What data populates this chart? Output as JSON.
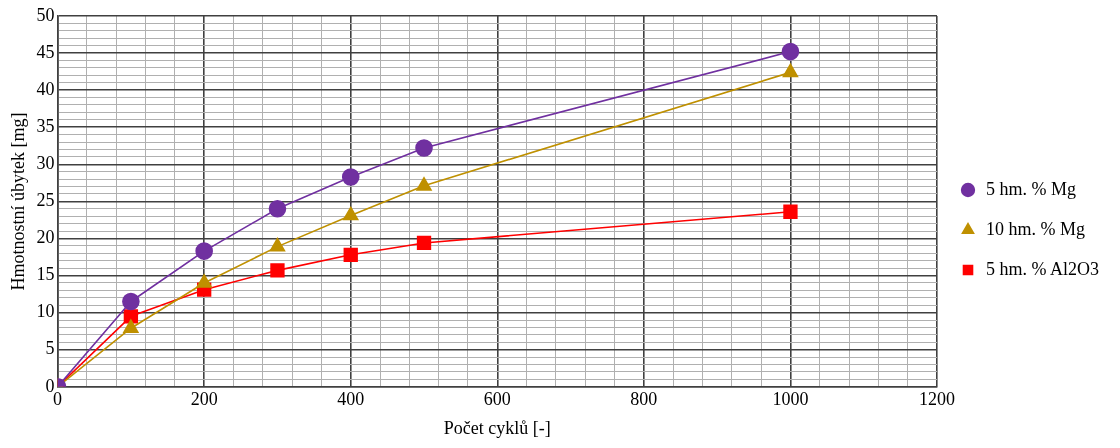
{
  "chart_data": {
    "type": "line",
    "xlabel": "Počet cyklů [-]",
    "ylabel": "Hmotnostní úbytek [mg]",
    "x": [
      0,
      100,
      200,
      300,
      400,
      500,
      1000
    ],
    "series": [
      {
        "name": "5 hm. % Mg",
        "color": "#7030a0",
        "marker": "circle",
        "values": [
          0,
          11.5,
          18.3,
          24,
          28.3,
          32.2,
          45.2
        ]
      },
      {
        "name": "10 hm. % Mg",
        "color": "#bf9000",
        "marker": "triangle",
        "values": [
          0,
          7.9,
          14,
          18.9,
          23.1,
          27.1,
          42.4
        ]
      },
      {
        "name": "5 hm. % Al2O3",
        "color": "#ff0000",
        "marker": "square",
        "values": [
          0,
          9.5,
          13.1,
          15.7,
          17.8,
          19.4,
          23.6
        ]
      }
    ],
    "xlim": [
      0,
      1200
    ],
    "xticks": [
      0,
      {
        "value": 40,
        "label": null
      },
      {
        "value": 80,
        "label": null
      },
      {
        "value": 120,
        "label": null
      },
      {
        "value": 160,
        "label": null
      },
      200,
      {
        "value": 240,
        "label": null
      },
      {
        "value": 280,
        "label": null
      },
      {
        "value": 320,
        "label": null
      },
      {
        "value": 360,
        "label": null
      },
      400,
      {
        "value": 440,
        "label": null
      },
      {
        "value": 480,
        "label": null
      },
      {
        "value": 520,
        "label": null
      },
      {
        "value": 560,
        "label": null
      },
      600,
      {
        "value": 640,
        "label": null
      },
      {
        "value": 680,
        "label": null
      },
      {
        "value": 720,
        "label": null
      },
      {
        "value": 760,
        "label": null
      },
      800,
      {
        "value": 840,
        "label": null
      },
      {
        "value": 880,
        "label": null
      },
      {
        "value": 920,
        "label": null
      },
      {
        "value": 960,
        "label": null
      },
      1000,
      {
        "value": 1040,
        "label": null
      },
      {
        "value": 1080,
        "label": null
      },
      {
        "value": 1120,
        "label": null
      },
      {
        "value": 1160,
        "label": null
      },
      1200
    ],
    "ylim": [
      0,
      50
    ],
    "yticks": [
      0,
      {
        "value": 1,
        "label": null
      },
      {
        "value": 2,
        "label": null
      },
      {
        "value": 3,
        "label": null
      },
      {
        "value": 4,
        "label": null
      },
      5,
      {
        "value": 6,
        "label": null
      },
      {
        "value": 7,
        "label": null
      },
      {
        "value": 8,
        "label": null
      },
      {
        "value": 9,
        "label": null
      },
      10,
      {
        "value": 11,
        "label": null
      },
      {
        "value": 12,
        "label": null
      },
      {
        "value": 13,
        "label": null
      },
      {
        "value": 14,
        "label": null
      },
      15,
      {
        "value": 16,
        "label": null
      },
      {
        "value": 17,
        "label": null
      },
      {
        "value": 18,
        "label": null
      },
      {
        "value": 19,
        "label": null
      },
      20,
      {
        "value": 21,
        "label": null
      },
      {
        "value": 22,
        "label": null
      },
      {
        "value": 23,
        "label": null
      },
      {
        "value": 24,
        "label": null
      },
      25,
      {
        "value": 26,
        "label": null
      },
      {
        "value": 27,
        "label": null
      },
      {
        "value": 28,
        "label": null
      },
      {
        "value": 29,
        "label": null
      },
      30,
      {
        "value": 31,
        "label": null
      },
      {
        "value": 32,
        "label": null
      },
      {
        "value": 33,
        "label": null
      },
      {
        "value": 34,
        "label": null
      },
      35,
      {
        "value": 36,
        "label": null
      },
      {
        "value": 37,
        "label": null
      },
      {
        "value": 38,
        "label": null
      },
      {
        "value": 39,
        "label": null
      },
      40,
      {
        "value": 41,
        "label": null
      },
      {
        "value": 42,
        "label": null
      },
      {
        "value": 43,
        "label": null
      },
      {
        "value": 44,
        "label": null
      },
      45,
      {
        "value": 46,
        "label": null
      },
      {
        "value": 47,
        "label": null
      },
      {
        "value": 48,
        "label": null
      },
      {
        "value": 49,
        "label": null
      },
      50
    ],
    "grid": true,
    "legend": "right",
    "line_style": "solid"
  }
}
